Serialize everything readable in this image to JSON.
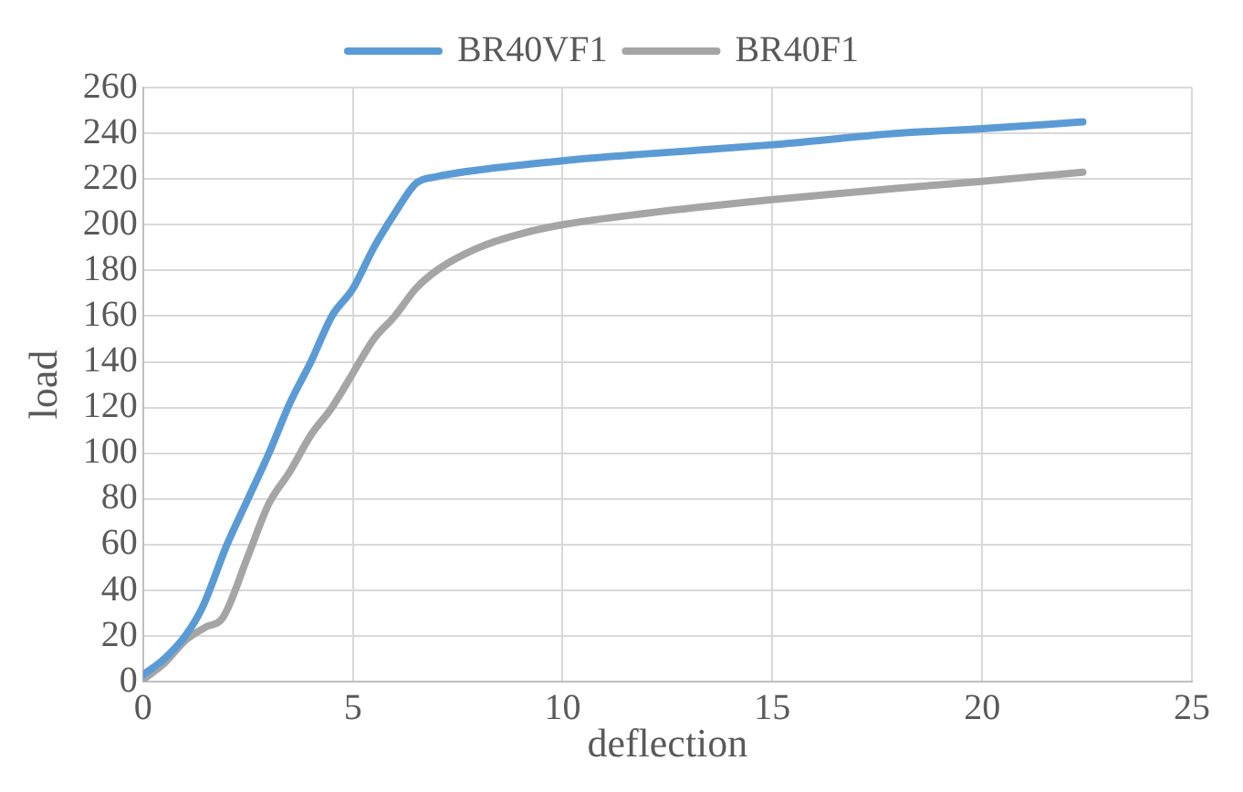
{
  "chart_data": {
    "type": "line",
    "xlabel": "deflection",
    "ylabel": "load",
    "xlim": [
      0,
      25
    ],
    "xticks": [
      0,
      5,
      10,
      15,
      20,
      25
    ],
    "ylim": [
      0,
      260
    ],
    "yticks": [
      0,
      20,
      40,
      60,
      80,
      100,
      120,
      140,
      160,
      180,
      200,
      220,
      240,
      260
    ],
    "grid": true,
    "legend": "top",
    "marker": "none",
    "line_style": "solid",
    "series": [
      {
        "name": "BR40VF1",
        "color": "#5b9bd5",
        "x": [
          0,
          0.5,
          1,
          1.4,
          2,
          2.5,
          3,
          3.5,
          4,
          4.5,
          5,
          5.5,
          6,
          6.5,
          7,
          8,
          10,
          12,
          15,
          18,
          20,
          22.4
        ],
        "values": [
          3,
          10,
          20,
          32,
          60,
          80,
          100,
          122,
          140,
          160,
          172,
          190,
          205,
          218,
          221,
          224,
          228,
          231,
          235,
          240,
          242,
          245
        ]
      },
      {
        "name": "BR40F1",
        "color": "#a5a5a5",
        "x": [
          0,
          0.5,
          1,
          1.5,
          1.9,
          2.5,
          3,
          3.5,
          4,
          4.5,
          5,
          5.5,
          6,
          6.5,
          7,
          8,
          9,
          10,
          12,
          15,
          18,
          20,
          22.4
        ],
        "values": [
          1,
          8,
          18,
          24,
          28,
          55,
          78,
          92,
          108,
          120,
          135,
          150,
          160,
          172,
          180,
          190,
          196,
          200,
          205,
          211,
          216,
          219,
          223
        ]
      }
    ]
  }
}
